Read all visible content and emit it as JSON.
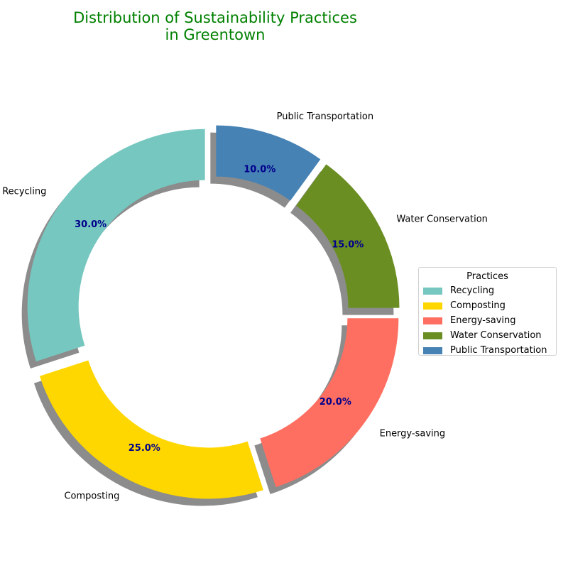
{
  "chart_data": {
    "type": "pie",
    "variant": "donut",
    "title": "Distribution of Sustainability Practices",
    "title_line2": "in Greentown",
    "title_color": "#008000",
    "categories": [
      "Recycling",
      "Composting",
      "Energy-saving",
      "Water Conservation",
      "Public Transportation"
    ],
    "values": [
      30.0,
      25.0,
      20.0,
      15.0,
      10.0
    ],
    "percent_labels": [
      "30.0%",
      "25.0%",
      "20.0%",
      "15.0%",
      "10.0%"
    ],
    "colors": [
      "#76c7c0",
      "#ffd700",
      "#ff6f61",
      "#6b8e23",
      "#4682b4"
    ],
    "percent_label_color": "#00008b",
    "start_angle": 90,
    "direction": "counterclockwise",
    "exploded": true,
    "shadow": true,
    "legend": {
      "title": "Practices",
      "position": "right",
      "items": [
        "Recycling",
        "Composting",
        "Energy-saving",
        "Water Conservation",
        "Public Transportation"
      ]
    }
  }
}
